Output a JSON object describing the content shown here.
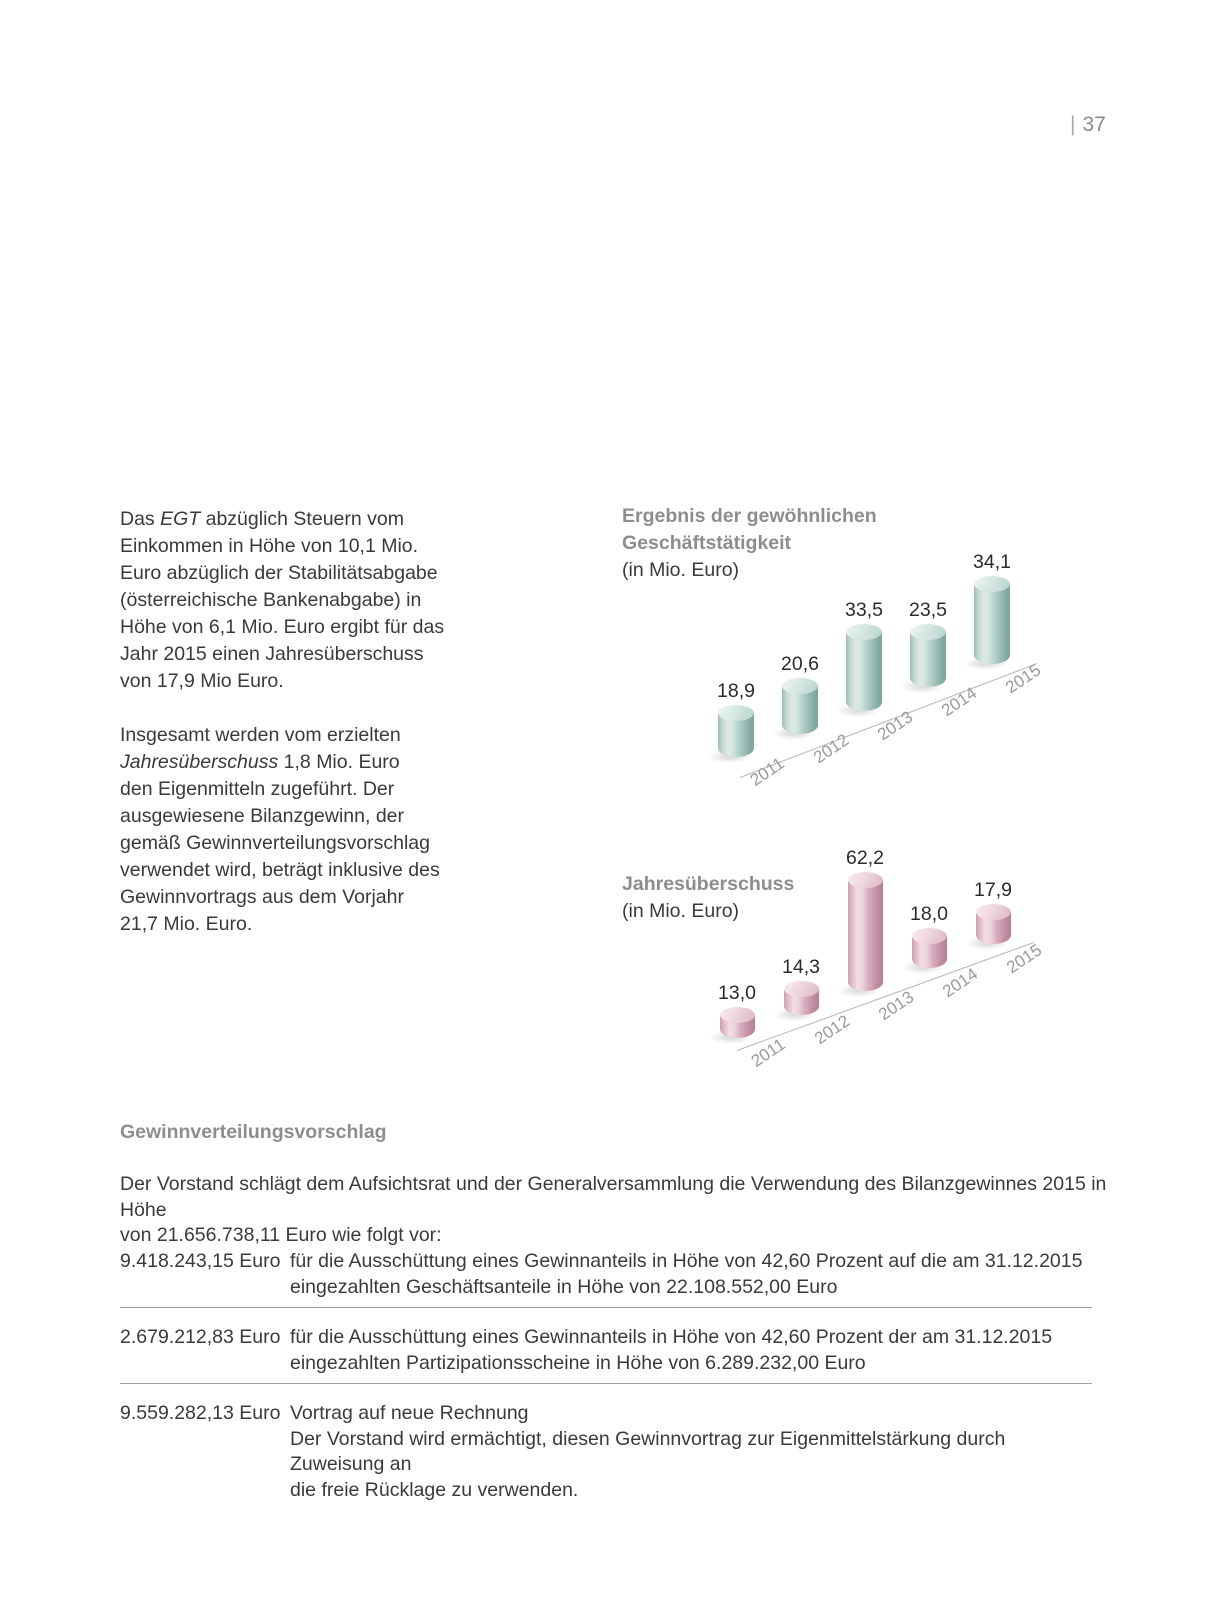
{
  "page": {
    "number": "37",
    "separator": "|"
  },
  "colors": {
    "teal_bar": "#aecdc6",
    "pink_bar": "#d6a9bb",
    "heading_gray": "#8d8d8d",
    "body_text": "#3a3a3a",
    "axis_line": "#b6b6b6",
    "year_label": "#9a9a9a"
  },
  "left_column": {
    "paragraphs": [
      {
        "lines": [
          [
            {
              "t": "Das "
            },
            {
              "t": "EGT",
              "i": 1
            },
            {
              "t": " abzüglich Steuern vom"
            }
          ],
          "Einkommen in Höhe von 10,1 Mio.",
          "Euro abzüglich der Stabilitätsabgabe",
          "(österreichische Bankenabgabe) in",
          "Höhe von 6,1 Mio. Euro ergibt für das",
          "Jahr 2015 einen Jahresüberschuss",
          "von 17,9 Mio Euro."
        ]
      },
      {
        "lines": [
          "Insgesamt werden vom erzielten",
          [
            {
              "t": "Jahresüberschuss",
              "i": 1
            },
            {
              "t": " 1,8 Mio. Euro"
            }
          ],
          "den Eigenmitteln zugeführt. Der",
          "ausgewiesene Bilanzgewinn, der",
          "gemäß Gewinnverteilungsvorschlag",
          "verwendet wird, beträgt inklusive des",
          "Gewinnvortrags aus dem Vorjahr",
          "21,7 Mio. Euro."
        ]
      }
    ]
  },
  "chart_data": [
    {
      "type": "bar",
      "style": "3d-cylinder",
      "title_lines": [
        "Ergebnis der gewöhnlichen",
        "Geschäftstätigkeit"
      ],
      "subtitle": "(in Mio. Euro)",
      "unit": "Mio. Euro",
      "categories": [
        "2011",
        "2012",
        "2013",
        "2014",
        "2015"
      ],
      "values": [
        18.9,
        20.6,
        33.5,
        23.5,
        34.1
      ],
      "value_labels": [
        "18,9",
        "20,6",
        "33,5",
        "23,5",
        "34,1"
      ],
      "bar_color": "#aecdc6",
      "grid": false,
      "legend": false
    },
    {
      "type": "bar",
      "style": "3d-cylinder",
      "title_lines": [
        "Jahresüberschuss"
      ],
      "subtitle": "(in Mio. Euro)",
      "unit": "Mio. Euro",
      "categories": [
        "2011",
        "2012",
        "2013",
        "2014",
        "2015"
      ],
      "values": [
        13.0,
        14.3,
        62.2,
        18.0,
        17.9
      ],
      "value_labels": [
        "13,0",
        "14,3",
        "62,2",
        "18,0",
        "17,9"
      ],
      "bar_color": "#d6a9bb",
      "grid": false,
      "legend": false
    }
  ],
  "distribution_section": {
    "heading": "Gewinnverteilungsvorschlag",
    "intro_lines": [
      "Der Vorstand schlägt dem Aufsichtsrat und der Generalversammlung die Verwendung des Bilanzgewinnes 2015 in Höhe",
      "von 21.656.738,11 Euro wie folgt vor:"
    ],
    "rows": [
      {
        "amount": "9.418.243,15 Euro",
        "lines": [
          "für die Ausschüttung eines Gewinnanteils in Höhe von 42,60 Prozent auf die am 31.12.2015",
          "eingezahlten Geschäftsanteile in Höhe von 22.108.552,00 Euro"
        ]
      },
      {
        "amount": "2.679.212,83 Euro",
        "lines": [
          "für die Ausschüttung eines Gewinnanteils in Höhe von 42,60 Prozent der am 31.12.2015",
          "eingezahlten Partizipationsscheine in Höhe von 6.289.232,00 Euro"
        ]
      },
      {
        "amount": "9.559.282,13 Euro",
        "lines": [
          "Vortrag auf neue Rechnung",
          "Der Vorstand wird ermächtigt, diesen Gewinnvortrag zur Eigenmittelstärkung durch Zuweisung an",
          "die freie Rücklage zu verwenden."
        ]
      }
    ]
  }
}
